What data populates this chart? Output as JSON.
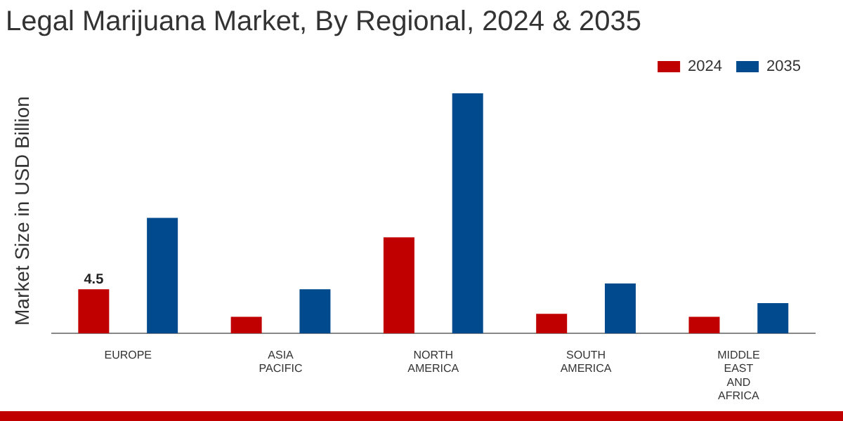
{
  "chart_data": {
    "type": "bar",
    "title": "Legal Marijuana Market, By Regional, 2024 & 2035",
    "ylabel": "Market Size in USD Billion",
    "tick_labels": "x",
    "legend": "top right",
    "grid": false,
    "categories": [
      "EUROPE",
      "ASIA PACIFIC",
      "NORTH AMERICA",
      "SOUTH AMERICA",
      "MIDDLE EAST AND AFRICA"
    ],
    "series": [
      {
        "name": "2024",
        "color": "#c00000",
        "values": [
          4.5,
          1.7,
          9.8,
          2.0,
          1.7
        ],
        "value_labels": [
          "4.5",
          null,
          null,
          null,
          null
        ]
      },
      {
        "name": "2035",
        "color": "#004a8d",
        "values": [
          11.8,
          4.5,
          24.5,
          5.1,
          3.1
        ]
      }
    ]
  }
}
